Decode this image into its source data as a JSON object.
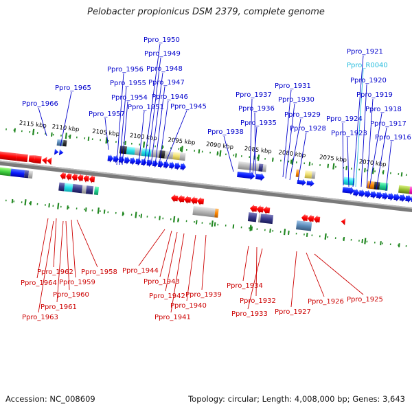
{
  "header": {
    "title": "Pelobacter propionicus DSM 2379, complete genome"
  },
  "footer": {
    "accession": "Accession: NC_008609",
    "summary": "Topology: circular; Length: 4,008,000 bp; Genes: 3,643"
  },
  "colors": {
    "forward_label": "#0000cc",
    "reverse_label": "#cc0000",
    "rna_label": "#22bbdd",
    "backbone": "#7a7a7a",
    "tick": "#228822"
  },
  "scale_ticks": [
    {
      "label": "2115 kbp"
    },
    {
      "label": "2110 kbp"
    },
    {
      "label": "2105 kbp"
    },
    {
      "label": "2100 kbp"
    },
    {
      "label": "2095 kbp"
    },
    {
      "label": "2090 kbp"
    },
    {
      "label": "2085 kbp"
    },
    {
      "label": "2080 kbp"
    },
    {
      "label": "2075 kbp"
    },
    {
      "label": "2070 kbp"
    }
  ],
  "forward_labels": [
    {
      "text": "Ppro_1950"
    },
    {
      "text": "Ppro_1949"
    },
    {
      "text": "Ppro_1956"
    },
    {
      "text": "Ppro_1948"
    },
    {
      "text": "Ppro_1955"
    },
    {
      "text": "Ppro_1947"
    },
    {
      "text": "Ppro_1965"
    },
    {
      "text": "Ppro_1954"
    },
    {
      "text": "Ppro_1946"
    },
    {
      "text": "Ppro_1966"
    },
    {
      "text": "Ppro_1951"
    },
    {
      "text": "Ppro_1945"
    },
    {
      "text": "Ppro_1957"
    },
    {
      "text": "Ppro_1937"
    },
    {
      "text": "Ppro_1936"
    },
    {
      "text": "Ppro_1935"
    },
    {
      "text": "Ppro_1938"
    },
    {
      "text": "Ppro_1931"
    },
    {
      "text": "Ppro_1930"
    },
    {
      "text": "Ppro_1929"
    },
    {
      "text": "Ppro_1928"
    },
    {
      "text": "Ppro_1921"
    },
    {
      "text": "Ppro_1920"
    },
    {
      "text": "Ppro_1919"
    },
    {
      "text": "Ppro_1918"
    },
    {
      "text": "Ppro_1924"
    },
    {
      "text": "Ppro_1917"
    },
    {
      "text": "Ppro_1923"
    },
    {
      "text": "Ppro_1916"
    }
  ],
  "rna_labels": [
    {
      "text": "Ppro_R0040"
    }
  ],
  "reverse_labels": [
    {
      "text": "Ppro_1962"
    },
    {
      "text": "Ppro_1958"
    },
    {
      "text": "Ppro_1964"
    },
    {
      "text": "Ppro_1959"
    },
    {
      "text": "Ppro_1960"
    },
    {
      "text": "Ppro_1961"
    },
    {
      "text": "Ppro_1963"
    },
    {
      "text": "Ppro_1944"
    },
    {
      "text": "Ppro_1943"
    },
    {
      "text": "Ppro_1942"
    },
    {
      "text": "Ppro_1939"
    },
    {
      "text": "Ppro_1940"
    },
    {
      "text": "Ppro_1941"
    },
    {
      "text": "Ppro_1934"
    },
    {
      "text": "Ppro_1932"
    },
    {
      "text": "Ppro_1933"
    },
    {
      "text": "Ppro_1927"
    },
    {
      "text": "Ppro_1926"
    },
    {
      "text": "Ppro_1925"
    }
  ]
}
